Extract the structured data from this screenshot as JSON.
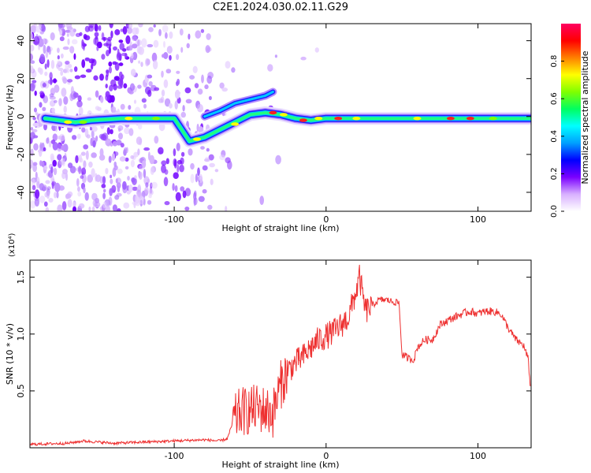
{
  "title": "C2E1.2024.030.02.11.G29",
  "chart_data": [
    {
      "type": "heatmap",
      "xlabel": "Height of straight line (km)",
      "ylabel": "Frequency (Hz)",
      "xlim": [
        -195,
        135
      ],
      "ylim": [
        -50,
        49
      ],
      "x_ticks": [
        -100,
        0,
        100
      ],
      "y_ticks": [
        -40,
        -20,
        0,
        20,
        40
      ],
      "colorbar": {
        "label": "Normalized spectral amplitude",
        "range": [
          0,
          1
        ],
        "ticks": [
          "0.0",
          "0.2",
          "0.4",
          "0.6",
          "0.8"
        ],
        "colors": [
          "#ffffff",
          "#d8b0ff",
          "#7a00ff",
          "#0000ff",
          "#00a0ff",
          "#00ffff",
          "#00ff60",
          "#80ff00",
          "#ffff00",
          "#ff8000",
          "#ff0000",
          "#ff0060"
        ]
      },
      "ridge": {
        "name": "",
        "x": [
          -185,
          -175,
          -165,
          -155,
          -135,
          -115,
          -100,
          -90,
          -80,
          -70,
          -60,
          -50,
          -40,
          -30,
          -20,
          -10,
          0,
          20,
          40,
          60,
          80,
          100,
          120,
          135
        ],
        "y": [
          -1,
          -2,
          -3,
          -2,
          -1,
          -1,
          -1,
          -13,
          -11,
          -7,
          -3,
          1,
          2,
          1,
          -1,
          -2,
          -1,
          -1,
          -1,
          -1,
          -1,
          -1,
          -1,
          -1
        ]
      },
      "upper_branch": {
        "x": [
          -80,
          -70,
          -60,
          -50,
          -40,
          -35
        ],
        "y": [
          0,
          3,
          7,
          9,
          11,
          13
        ]
      }
    },
    {
      "type": "line",
      "xlabel": "Height of straight line (km)",
      "ylabel": "SNR (10 * v/v)",
      "y_multiplier": "(x10⁴)",
      "xlim": [
        -195,
        135
      ],
      "ylim": [
        0,
        1.65
      ],
      "x_ticks": [
        -100,
        0,
        100
      ],
      "y_ticks": [
        0.5,
        1.0,
        1.5
      ],
      "y_tick_labels": [
        "0.5",
        "1.0",
        "1.5"
      ],
      "color": "#ee3030",
      "series": [
        {
          "name": "",
          "x": [
            -195,
            -170,
            -160,
            -140,
            -120,
            -100,
            -80,
            -70,
            -65,
            -62,
            -58,
            -55,
            -50,
            -45,
            -40,
            -35,
            -30,
            -25,
            -20,
            -15,
            -10,
            -5,
            0,
            5,
            10,
            15,
            18,
            20,
            22,
            24,
            26,
            30,
            35,
            40,
            45,
            48,
            50,
            55,
            58,
            60,
            65,
            70,
            75,
            80,
            85,
            90,
            95,
            100,
            105,
            110,
            115,
            120,
            125,
            130,
            133,
            135
          ],
          "y": [
            0.03,
            0.04,
            0.06,
            0.04,
            0.05,
            0.06,
            0.07,
            0.06,
            0.08,
            0.2,
            0.3,
            0.32,
            0.33,
            0.35,
            0.33,
            0.3,
            0.55,
            0.68,
            0.75,
            0.8,
            0.88,
            0.95,
            0.98,
            1.02,
            1.08,
            1.15,
            1.3,
            1.38,
            1.5,
            1.35,
            1.2,
            1.25,
            1.3,
            1.3,
            1.28,
            1.28,
            0.82,
            0.78,
            0.78,
            0.88,
            0.95,
            0.95,
            1.08,
            1.12,
            1.15,
            1.18,
            1.2,
            1.18,
            1.2,
            1.2,
            1.18,
            1.05,
            0.95,
            0.9,
            0.78,
            0.48
          ]
        }
      ]
    }
  ]
}
